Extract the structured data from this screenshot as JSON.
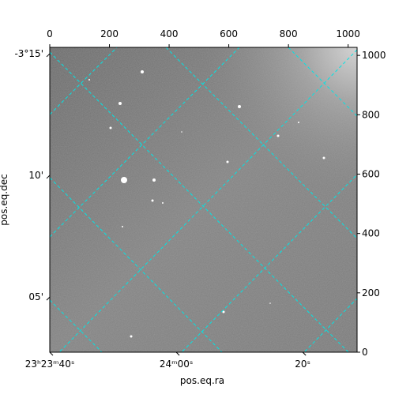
{
  "chart_data": {
    "type": "image",
    "xlabel": "pos.eq.ra",
    "ylabel": "pos.eq.dec",
    "xlim": [
      0,
      1030
    ],
    "xticks": [
      0,
      200,
      400,
      600,
      800,
      1000
    ],
    "ylim": [
      0,
      1027
    ],
    "yticks": [
      0,
      200,
      400,
      600,
      800,
      1000
    ],
    "ra_lim": [
      84220,
      84268.6
    ],
    "ra_ticks": [
      {
        "value": 84220,
        "label": "23ʰ23ᵐ40ˢ"
      },
      {
        "value": 84240,
        "label": "24ᵐ00ˢ"
      },
      {
        "value": 84260,
        "label": "20ˢ"
      }
    ],
    "dec_lim": [
      -3.2543,
      -3.0455
    ],
    "dec_ticks": [
      {
        "value": -3.25,
        "label": "-3°15'"
      },
      {
        "value": -3.1667,
        "label": "10'"
      },
      {
        "value": -3.0833,
        "label": "05'"
      }
    ],
    "grid_color": "#00e5e5"
  }
}
